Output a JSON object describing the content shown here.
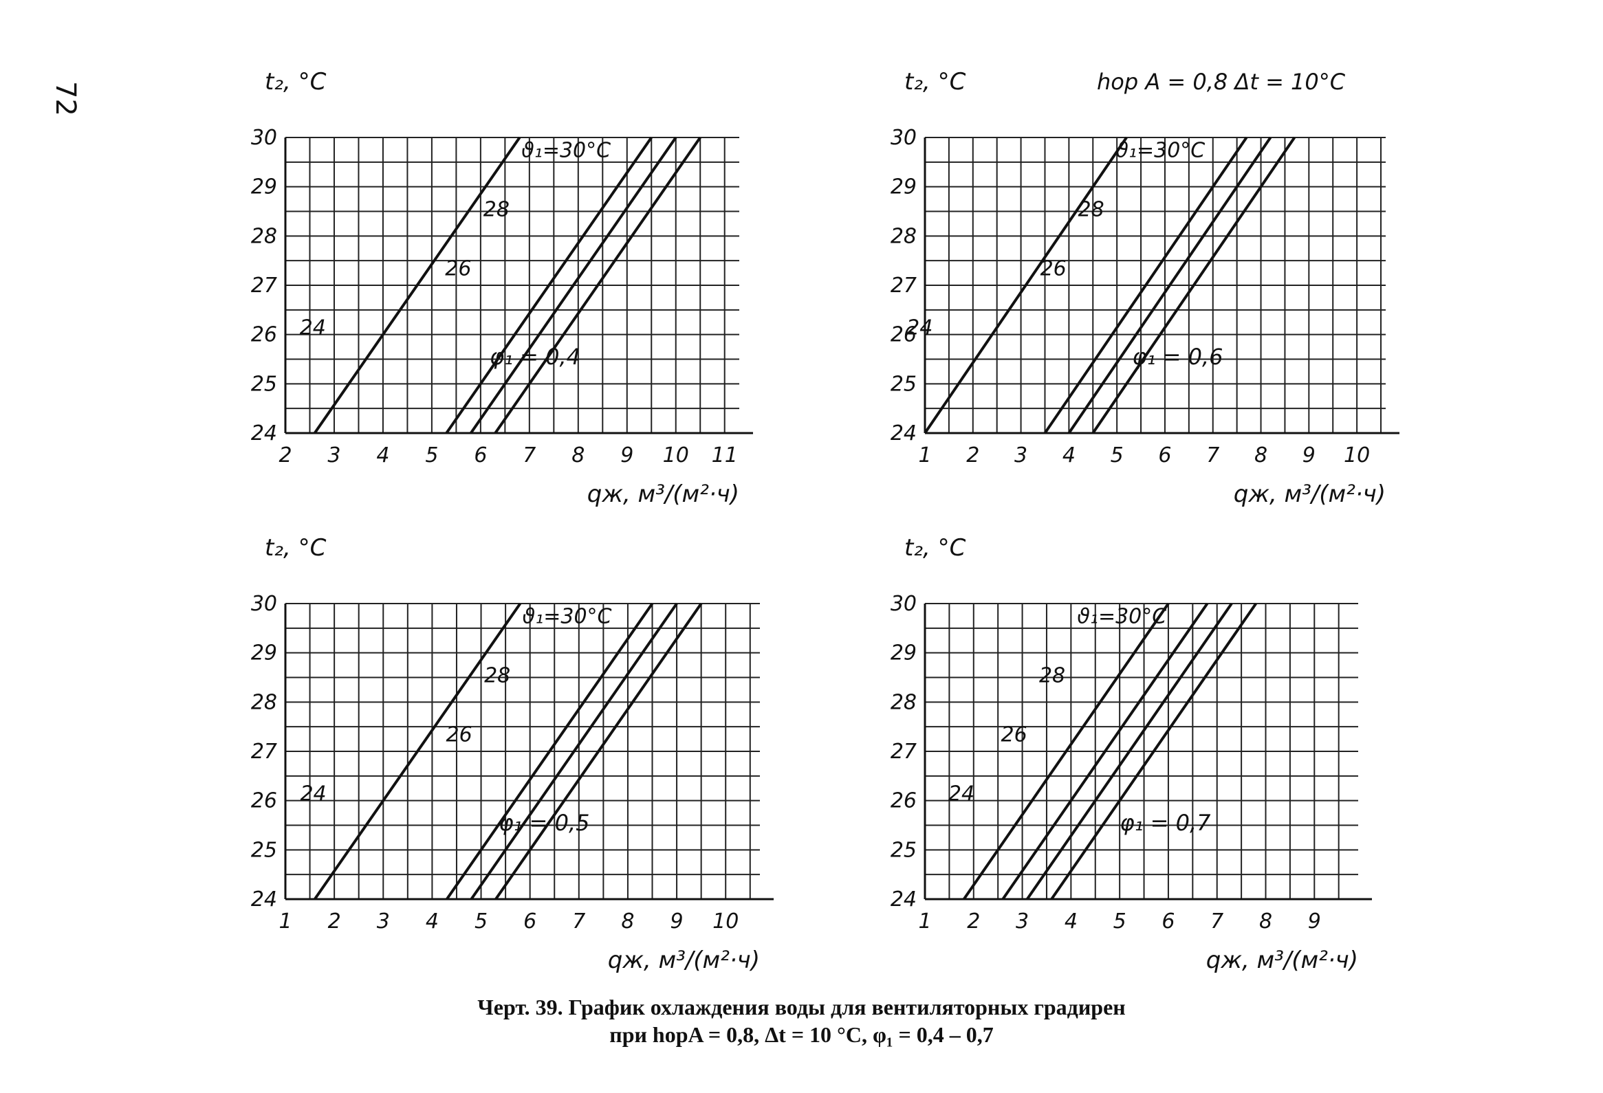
{
  "page_number": "72",
  "caption": {
    "line1": "Черт. 39. График охлаждения воды для вентиляторных градирен",
    "line2": "при hорA = 0,8, Δt = 10 °C, φ₁ = 0,4 – 0,7"
  },
  "chart_data": [
    {
      "type": "line",
      "header": "",
      "ylabel": "t₂, °C",
      "xlabel": "qж, м³/(м²·ч)",
      "phi_label": "φ₁ = 0,4",
      "xlim": [
        2,
        11.3
      ],
      "ylim": [
        24,
        30
      ],
      "x_ticks": [
        2,
        3,
        4,
        5,
        6,
        7,
        8,
        9,
        10,
        11
      ],
      "y_ticks": [
        24,
        25,
        26,
        27,
        28,
        29,
        30
      ],
      "series": [
        {
          "name": "ϑ₁=30°C",
          "points": [
            [
              6.3,
              24
            ],
            [
              10.5,
              30
            ]
          ]
        },
        {
          "name": "28",
          "points": [
            [
              5.8,
              24
            ],
            [
              10.0,
              30
            ]
          ]
        },
        {
          "name": "26",
          "points": [
            [
              5.3,
              24
            ],
            [
              9.5,
              30
            ]
          ]
        },
        {
          "name": "24",
          "points": [
            [
              2.6,
              24
            ],
            [
              6.8,
              30
            ]
          ]
        }
      ]
    },
    {
      "type": "line",
      "header": "hор A = 0,8    Δt = 10°C",
      "ylabel": "t₂, °C",
      "xlabel": "qж, м³/(м²·ч)",
      "phi_label": "φ₁ = 0,6",
      "xlim": [
        1,
        10.6
      ],
      "ylim": [
        24,
        30
      ],
      "x_ticks": [
        1,
        2,
        3,
        4,
        5,
        6,
        7,
        8,
        9,
        10
      ],
      "y_ticks": [
        24,
        25,
        26,
        27,
        28,
        29,
        30
      ],
      "series": [
        {
          "name": "ϑ₁=30°C",
          "points": [
            [
              4.5,
              24
            ],
            [
              8.7,
              30
            ]
          ]
        },
        {
          "name": "28",
          "points": [
            [
              4.0,
              24
            ],
            [
              8.2,
              30
            ]
          ]
        },
        {
          "name": "26",
          "points": [
            [
              3.5,
              24
            ],
            [
              7.7,
              30
            ]
          ]
        },
        {
          "name": "24",
          "points": [
            [
              1.0,
              24
            ],
            [
              5.2,
              30
            ]
          ]
        }
      ]
    },
    {
      "type": "line",
      "header": "",
      "ylabel": "t₂, °C",
      "xlabel": "qж, м³/(м²·ч)",
      "phi_label": "φ₁ = 0,5",
      "xlim": [
        1,
        10.7
      ],
      "ylim": [
        24,
        30
      ],
      "x_ticks": [
        1,
        2,
        3,
        4,
        5,
        6,
        7,
        8,
        9,
        10
      ],
      "y_ticks": [
        24,
        25,
        26,
        27,
        28,
        29,
        30
      ],
      "series": [
        {
          "name": "ϑ₁=30°C",
          "points": [
            [
              5.3,
              24
            ],
            [
              9.5,
              30
            ]
          ]
        },
        {
          "name": "28",
          "points": [
            [
              4.8,
              24
            ],
            [
              9.0,
              30
            ]
          ]
        },
        {
          "name": "26",
          "points": [
            [
              4.3,
              24
            ],
            [
              8.5,
              30
            ]
          ]
        },
        {
          "name": "24",
          "points": [
            [
              1.6,
              24
            ],
            [
              5.8,
              30
            ]
          ]
        }
      ]
    },
    {
      "type": "line",
      "header": "",
      "ylabel": "t₂, °C",
      "xlabel": "qж, м³/(м²·ч)",
      "phi_label": "φ₁ = 0,7",
      "xlim": [
        1,
        9.9
      ],
      "ylim": [
        24,
        30
      ],
      "x_ticks": [
        1,
        2,
        3,
        4,
        5,
        6,
        7,
        8,
        9
      ],
      "y_ticks": [
        24,
        25,
        26,
        27,
        28,
        29,
        30
      ],
      "series": [
        {
          "name": "ϑ₁=30°C",
          "points": [
            [
              3.6,
              24
            ],
            [
              7.8,
              30
            ]
          ]
        },
        {
          "name": "28",
          "points": [
            [
              3.1,
              24
            ],
            [
              7.3,
              30
            ]
          ]
        },
        {
          "name": "26",
          "points": [
            [
              2.6,
              24
            ],
            [
              6.8,
              30
            ]
          ]
        },
        {
          "name": "24",
          "points": [
            [
              1.8,
              24
            ],
            [
              6.0,
              30
            ]
          ]
        }
      ]
    }
  ]
}
